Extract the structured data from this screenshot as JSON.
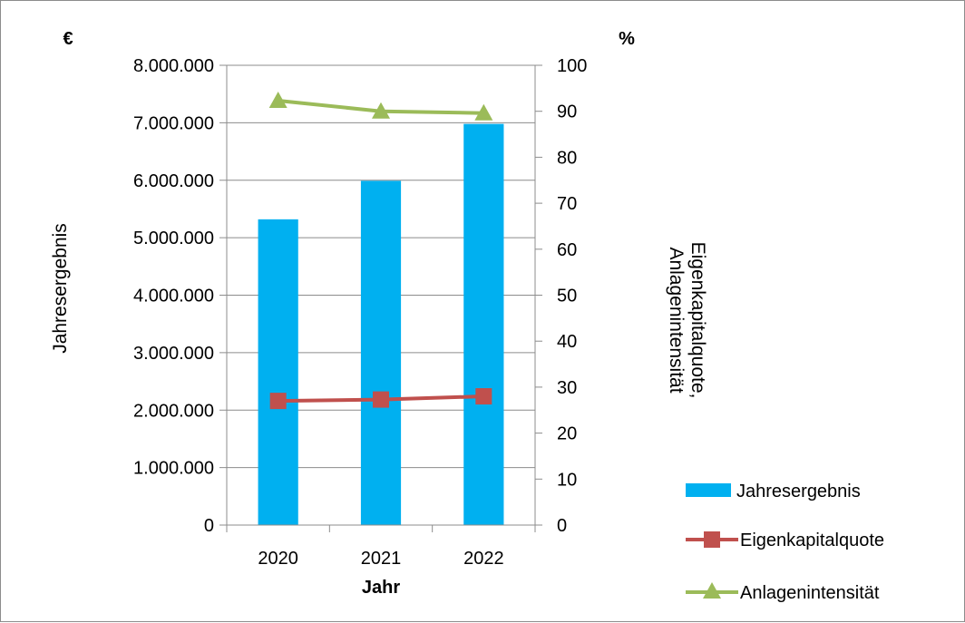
{
  "chart_data": {
    "type": "bar",
    "categories": [
      "2020",
      "2021",
      "2022"
    ],
    "xlabel": "Jahr",
    "ylabel": "Jahresergebnis",
    "y2label_line1": "Eigenkapitalquote,",
    "y2label_line2": "Anlagenintensität",
    "y_unit": "€",
    "y2_unit": "%",
    "ylim": [
      0,
      8000000
    ],
    "y2lim": [
      0,
      100
    ],
    "y_ticks": [
      0,
      1000000,
      2000000,
      3000000,
      4000000,
      5000000,
      6000000,
      7000000,
      8000000
    ],
    "y_tick_labels": [
      "0",
      "1.000.000",
      "2.000.000",
      "3.000.000",
      "4.000.000",
      "5.000.000",
      "6.000.000",
      "7.000.000",
      "8.000.000"
    ],
    "y2_ticks": [
      0,
      10,
      20,
      30,
      40,
      50,
      60,
      70,
      80,
      90,
      100
    ],
    "y2_tick_labels": [
      "0",
      "10",
      "20",
      "30",
      "40",
      "50",
      "60",
      "70",
      "80",
      "90",
      "100"
    ],
    "grid": true,
    "legend_position": "right",
    "series": [
      {
        "name": "Jahresergebnis",
        "type": "bar",
        "axis": "left",
        "color": "#00b0f0",
        "values": [
          5320000,
          5990000,
          6980000
        ]
      },
      {
        "name": "Eigenkapitalquote",
        "type": "line",
        "axis": "right",
        "marker": "square",
        "color": "#c0504d",
        "values": [
          27.0,
          27.3,
          28.0
        ]
      },
      {
        "name": "Anlagenintensität",
        "type": "line",
        "axis": "right",
        "marker": "triangle",
        "color": "#9bbb59",
        "values": [
          92.3,
          90.0,
          89.6
        ]
      }
    ]
  }
}
